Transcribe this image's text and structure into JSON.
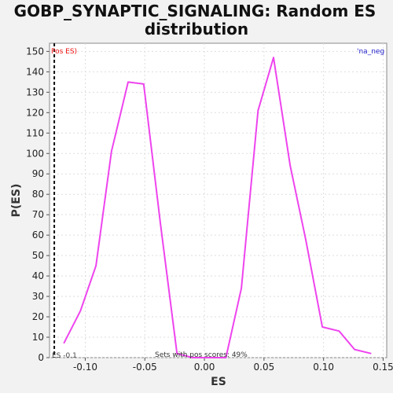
{
  "chart_data": {
    "type": "line",
    "title_line1": "GOBP_SYNAPTIC_SIGNALING: Random ES",
    "title_line2": "distribution",
    "xlabel": "ES",
    "ylabel": "P(ES)",
    "xlim": [
      -0.13,
      0.153
    ],
    "ylim": [
      0,
      154
    ],
    "xticks": [
      -0.1,
      -0.05,
      0.0,
      0.05,
      0.1,
      0.15
    ],
    "xtick_labels": [
      "-0.10",
      "-0.05",
      "0.00",
      "0.05",
      "0.10",
      "0.15"
    ],
    "yticks": [
      0,
      10,
      20,
      30,
      40,
      50,
      60,
      70,
      80,
      90,
      100,
      110,
      120,
      130,
      140,
      150
    ],
    "ytick_labels": [
      "0",
      "10",
      "20",
      "30",
      "40",
      "50",
      "60",
      "70",
      "80",
      "90",
      "100",
      "110",
      "120",
      "130",
      "140",
      "150"
    ],
    "grid": true,
    "series": [
      {
        "color": "#ee44ee",
        "x": [
          -0.118,
          -0.104,
          -0.091,
          -0.078,
          -0.064,
          -0.051,
          -0.037,
          -0.023,
          -0.01,
          0.004,
          0.018,
          0.031,
          0.045,
          0.058,
          0.072,
          0.085,
          0.099,
          0.113,
          0.126,
          0.14
        ],
        "y": [
          7,
          23,
          45,
          101,
          135,
          134,
          66,
          2,
          0,
          0,
          0,
          34,
          121,
          147,
          94,
          58,
          15,
          13,
          4,
          2
        ]
      }
    ],
    "pos_es_x": -0.126,
    "annotations": {
      "pos_es_label": "Pos ES)",
      "neg_label": "'na_neg",
      "es_label": "ES -0.1",
      "sets_label": "Sets with pos scores: 49%"
    },
    "colors": {
      "line": "#ee44ee",
      "pos_es": "#ee1111",
      "neg": "#2222cc",
      "background": "#f2f2f2",
      "plot_bg": "#ffffff",
      "grid": "#dddddd"
    }
  }
}
